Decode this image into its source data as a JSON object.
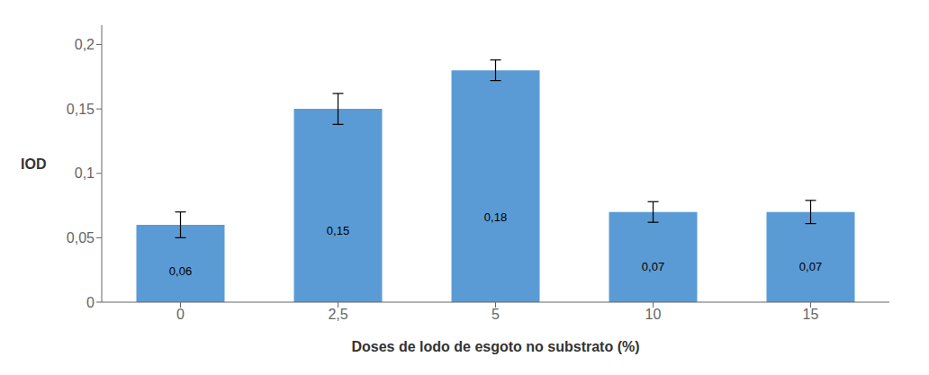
{
  "chart_data": {
    "type": "bar",
    "categories": [
      "0",
      "2,5",
      "5",
      "10",
      "15"
    ],
    "values": [
      0.06,
      0.15,
      0.18,
      0.07,
      0.07
    ],
    "value_labels": [
      "0,06",
      "0,15",
      "0,18",
      "0,07",
      "0,07"
    ],
    "errors": [
      0.01,
      0.012,
      0.008,
      0.008,
      0.009
    ],
    "color": "#5b9bd5",
    "xlabel": "Doses de lodo de esgoto no substrato (%)",
    "ylabel": "IOD",
    "ylim": [
      0,
      0.215
    ],
    "yticks": [
      0,
      {
        "value": 0.05,
        "label": "0,05"
      },
      {
        "value": 0.1,
        "label": "0,1"
      },
      {
        "value": 0.15,
        "label": "0,15"
      },
      {
        "value": 0.2,
        "label": "0,2"
      }
    ],
    "grid": false,
    "data_labels": true
  }
}
